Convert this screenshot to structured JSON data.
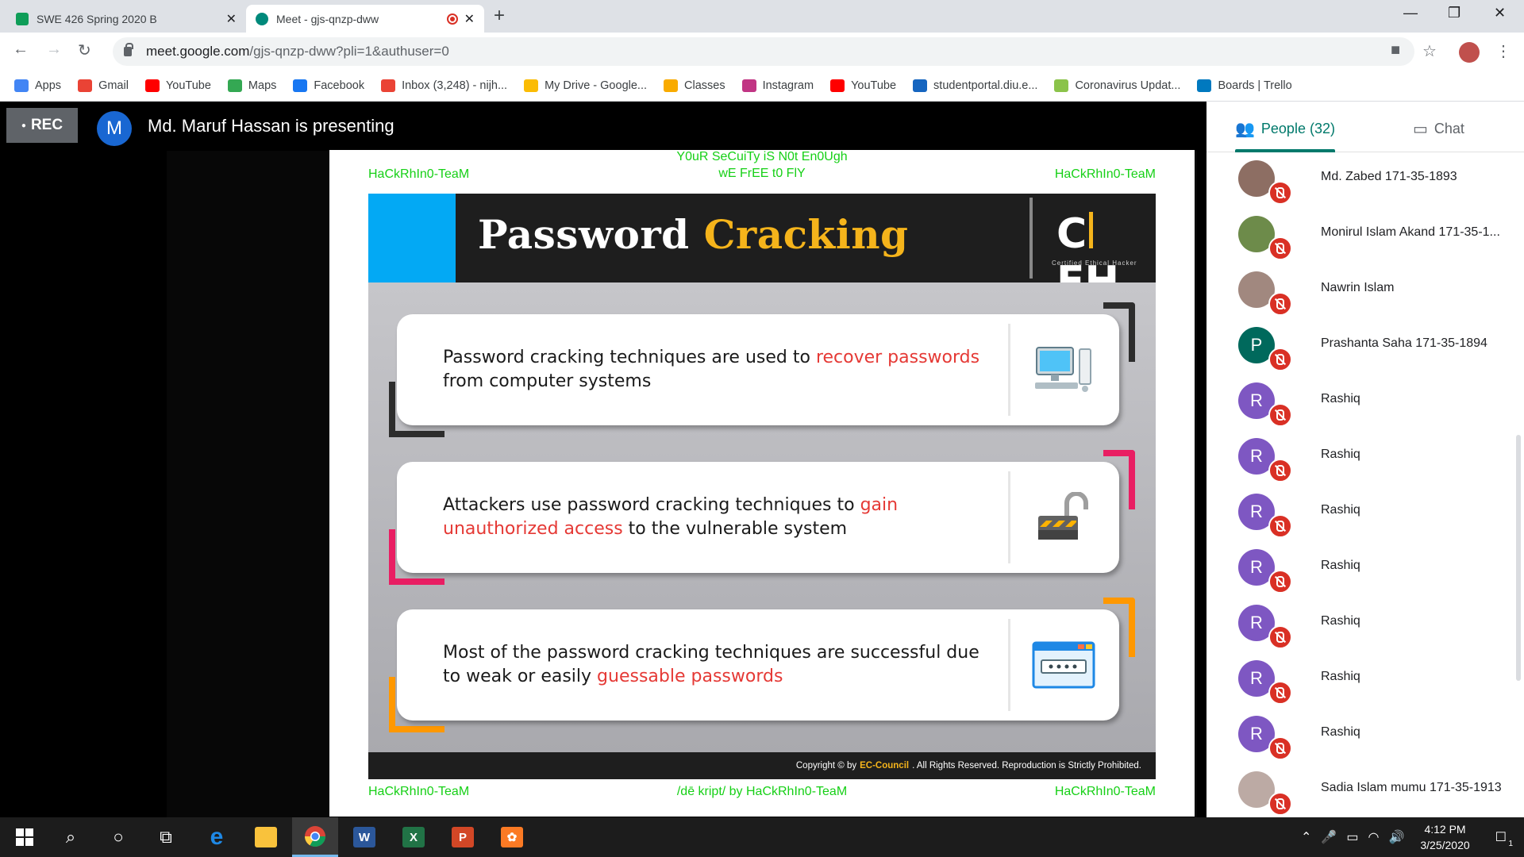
{
  "browser": {
    "tabs": [
      {
        "title": "SWE 426 Spring 2020 B",
        "favicon_color": "#0f9d58"
      },
      {
        "title": "Meet - gjs-qnzp-dww",
        "favicon_color": "#00897b"
      }
    ],
    "url_host": "meet.google.com",
    "url_path": "/gjs-qnzp-dww?pli=1&authuser=0",
    "bookmarks": [
      {
        "label": "Apps",
        "icon": "apps-grid-icon",
        "color": "#4285f4"
      },
      {
        "label": "Gmail",
        "icon": "gmail-icon",
        "color": "#ea4335"
      },
      {
        "label": "YouTube",
        "icon": "youtube-icon",
        "color": "#ff0000"
      },
      {
        "label": "Maps",
        "icon": "maps-pin-icon",
        "color": "#34a853"
      },
      {
        "label": "Facebook",
        "icon": "facebook-icon",
        "color": "#1877f2"
      },
      {
        "label": "Inbox (3,248) - nijh...",
        "icon": "gmail-icon",
        "color": "#ea4335"
      },
      {
        "label": "My Drive - Google...",
        "icon": "drive-icon",
        "color": "#fbbc04"
      },
      {
        "label": "Classes",
        "icon": "classroom-icon",
        "color": "#f9ab00"
      },
      {
        "label": "Instagram",
        "icon": "instagram-icon",
        "color": "#c13584"
      },
      {
        "label": "YouTube",
        "icon": "youtube-icon",
        "color": "#ff0000"
      },
      {
        "label": "studentportal.diu.e...",
        "icon": "portal-icon",
        "color": "#1565c0"
      },
      {
        "label": "Coronavirus Updat...",
        "icon": "news-icon",
        "color": "#8bc34a"
      },
      {
        "label": "Boards | Trello",
        "icon": "trello-icon",
        "color": "#0079bf"
      }
    ]
  },
  "meet": {
    "rec_label": "REC",
    "presenter_initial": "M",
    "presenting_text": "Md. Maruf Hassan is presenting",
    "people_tab": "People (32)",
    "chat_tab": "Chat",
    "participants": [
      {
        "name": "Md. Zabed 171-35-1893",
        "initial": "",
        "color": "#8d6e63"
      },
      {
        "name": "Monirul Islam Akand 171-35-1...",
        "initial": "",
        "color": "#6d8b4a"
      },
      {
        "name": "Nawrin Islam",
        "initial": "",
        "color": "#a1887f"
      },
      {
        "name": "Prashanta Saha 171-35-1894",
        "initial": "P",
        "color": "#00695c"
      },
      {
        "name": "Rashiq",
        "initial": "R",
        "color": "#7e57c2"
      },
      {
        "name": "Rashiq",
        "initial": "R",
        "color": "#7e57c2"
      },
      {
        "name": "Rashiq",
        "initial": "R",
        "color": "#7e57c2"
      },
      {
        "name": "Rashiq",
        "initial": "R",
        "color": "#7e57c2"
      },
      {
        "name": "Rashiq",
        "initial": "R",
        "color": "#7e57c2"
      },
      {
        "name": "Rashiq",
        "initial": "R",
        "color": "#7e57c2"
      },
      {
        "name": "Rashiq",
        "initial": "R",
        "color": "#7e57c2"
      },
      {
        "name": "Sadia Islam mumu 171-35-1913",
        "initial": "",
        "color": "#bcaaa4"
      }
    ]
  },
  "slide": {
    "watermark_top_left": "HaCkRhIn0-TeaM",
    "watermark_top_center_1": "Y0uR SeCuiTy iS N0t En0Ugh",
    "watermark_top_center_2": "wE FrEE t0 FlY",
    "watermark_top_right": "HaCkRhIn0-TeaM",
    "watermark_bottom_left": "HaCkRhIn0-TeaM",
    "watermark_bottom_center": "/dē kript/ by HaCkRhIn0-TeaM",
    "watermark_bottom_right": "HaCkRhIn0-TeaM",
    "title_part1": "Password",
    "title_part2": "Cracking",
    "logo_letters_1": "C",
    "logo_letters_2": "EH",
    "logo_sub": "Certified   Ethical   Hacker",
    "cards": [
      {
        "pre": "Password cracking techniques are used to ",
        "hl": "recover passwords",
        "post": " from computer systems",
        "icon": "computer-icon",
        "bracket_color": "#2d2d2d"
      },
      {
        "pre": "Attackers use password cracking techniques to ",
        "hl": "gain unauthorized access",
        "post": " to the vulnerable system",
        "icon": "unlocked-padlock-icon",
        "bracket_color": "#e91e63"
      },
      {
        "pre": "Most of the password cracking techniques are successful due to weak or easily ",
        "hl": "guessable passwords",
        "post": "",
        "icon": "password-field-icon",
        "bracket_color": "#ff9800"
      }
    ],
    "copyright_pre": "Copyright © by",
    "copyright_brand": "EC-Council",
    "copyright_post": ". All Rights Reserved. Reproduction is Strictly Prohibited."
  },
  "taskbar": {
    "time": "4:12 PM",
    "date": "3/25/2020",
    "notification_count": "1"
  }
}
